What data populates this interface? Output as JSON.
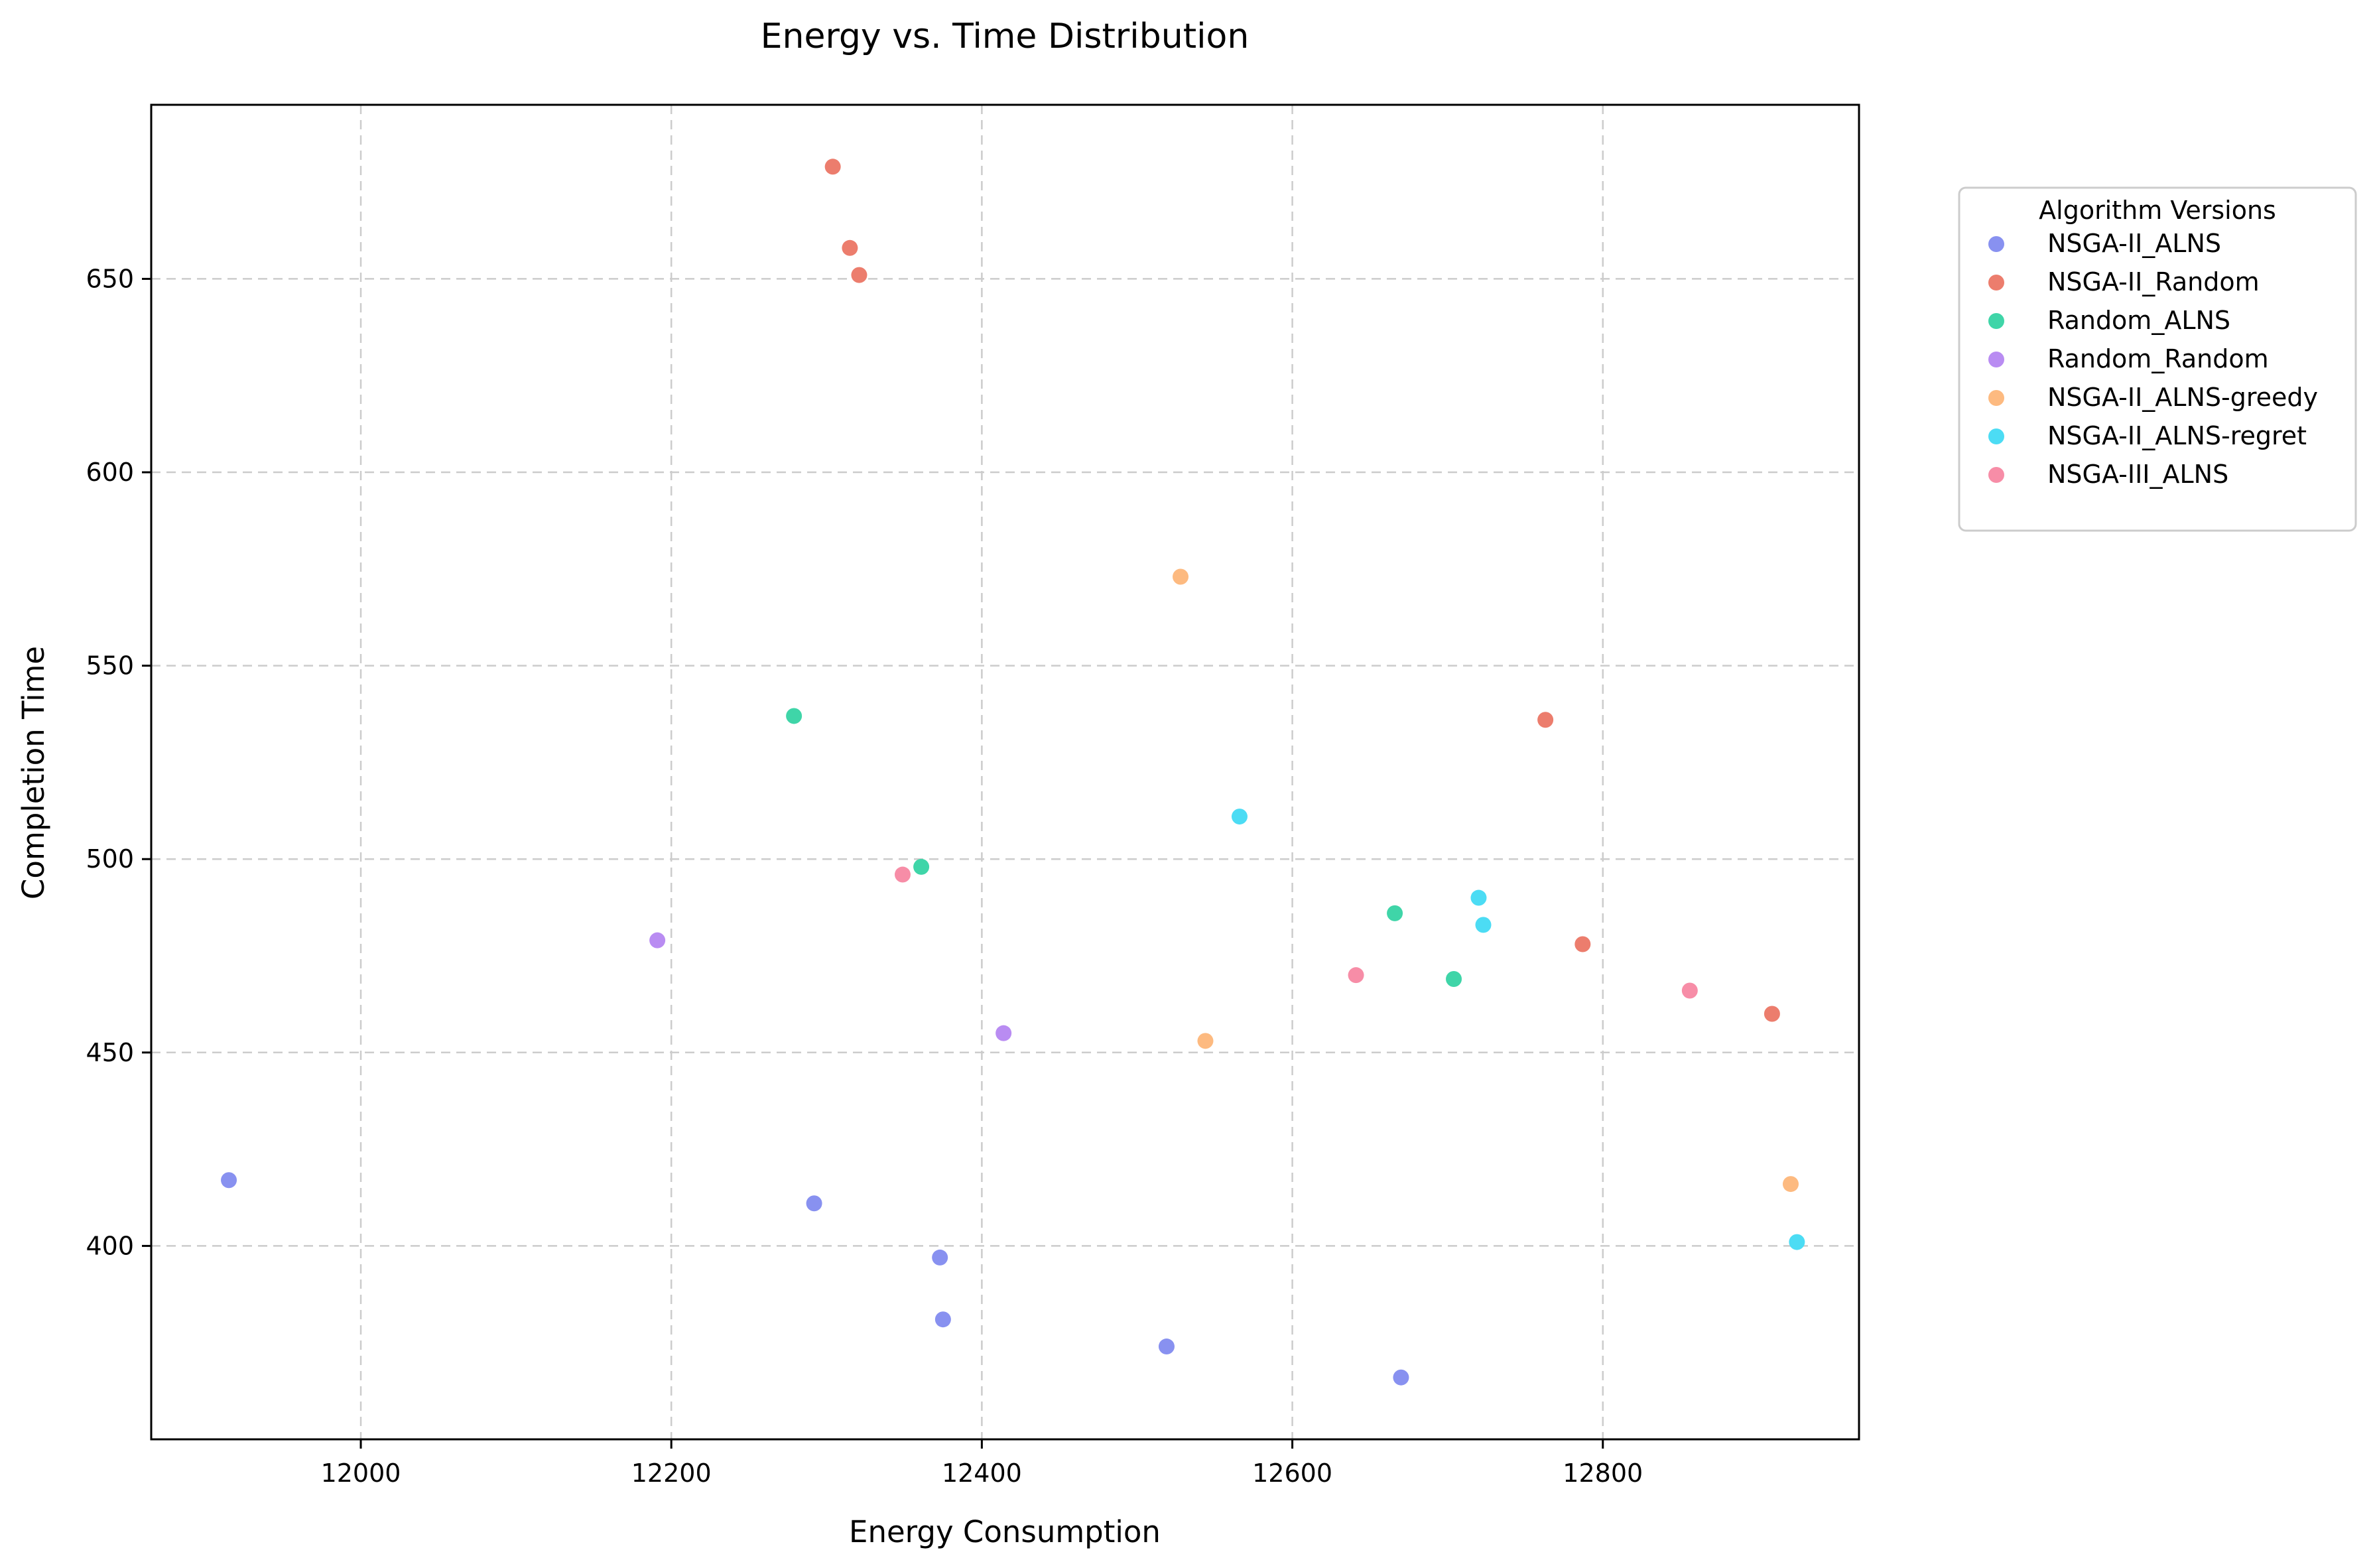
{
  "chart_data": {
    "type": "scatter",
    "title": "Energy vs. Time Distribution",
    "xlabel": "Energy Consumption",
    "ylabel": "Completion Time",
    "xlim": [
      11865,
      12965
    ],
    "ylim": [
      350,
      695
    ],
    "xticks": [
      12000,
      12200,
      12400,
      12600,
      12800
    ],
    "yticks": [
      400,
      450,
      500,
      550,
      600,
      650
    ],
    "grid": true,
    "legend": {
      "title": "Algorithm Versions",
      "placement": "outside-right"
    },
    "series": [
      {
        "name": "NSGA-II_ALNS",
        "color": "#8891f0",
        "points": [
          [
            11915,
            417
          ],
          [
            12292,
            411
          ],
          [
            12373,
            397
          ],
          [
            12375,
            381
          ],
          [
            12519,
            374
          ],
          [
            12670,
            366
          ]
        ]
      },
      {
        "name": "NSGA-II_Random",
        "color": "#ec7d6d",
        "points": [
          [
            12304,
            679
          ],
          [
            12315,
            658
          ],
          [
            12321,
            651
          ],
          [
            12763,
            536
          ],
          [
            12787,
            478
          ],
          [
            12909,
            460
          ]
        ]
      },
      {
        "name": "Random_ALNS",
        "color": "#3fd5a8",
        "points": [
          [
            12279,
            537
          ],
          [
            12361,
            498
          ],
          [
            12666,
            486
          ],
          [
            12704,
            469
          ]
        ]
      },
      {
        "name": "Random_Random",
        "color": "#b98cf2",
        "points": [
          [
            12191,
            479
          ],
          [
            12414,
            455
          ]
        ]
      },
      {
        "name": "NSGA-II_ALNS-greedy",
        "color": "#fdba80",
        "points": [
          [
            12528,
            573
          ],
          [
            12544,
            453
          ],
          [
            12921,
            416
          ]
        ]
      },
      {
        "name": "NSGA-II_ALNS-regret",
        "color": "#4cdcf4",
        "points": [
          [
            12566,
            511
          ],
          [
            12720,
            490
          ],
          [
            12723,
            483
          ],
          [
            12925,
            401
          ]
        ]
      },
      {
        "name": "NSGA-III_ALNS",
        "color": "#f78da7",
        "points": [
          [
            12349,
            496
          ],
          [
            12641,
            470
          ],
          [
            12856,
            466
          ]
        ]
      }
    ]
  }
}
